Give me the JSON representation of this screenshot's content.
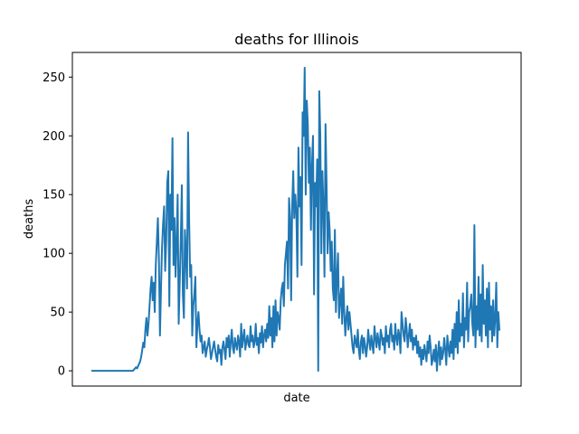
{
  "chart_data": {
    "type": "line",
    "title": "deaths for Illinois",
    "xlabel": "date",
    "ylabel": "deaths",
    "ylim": [
      -13,
      271
    ],
    "yticks": [
      0,
      50,
      100,
      150,
      200,
      250
    ],
    "x_ticks_visible": false,
    "grid": false,
    "legend": "none",
    "series": [
      {
        "color": "#1f77b4",
        "values": [
          0,
          0,
          0,
          0,
          0,
          0,
          0,
          0,
          0,
          0,
          0,
          0,
          0,
          0,
          0,
          0,
          0,
          0,
          0,
          0,
          0,
          0,
          0,
          0,
          0,
          0,
          0,
          0,
          0,
          0,
          0,
          0,
          0,
          0,
          0,
          0,
          0,
          0,
          0,
          0,
          1,
          2,
          3,
          2,
          4,
          6,
          8,
          12,
          18,
          24,
          20,
          35,
          45,
          30,
          40,
          55,
          70,
          80,
          60,
          75,
          50,
          90,
          110,
          130,
          95,
          30,
          70,
          105,
          125,
          140,
          85,
          110,
          160,
          170,
          55,
          150,
          120,
          198,
          90,
          130,
          80,
          110,
          150,
          40,
          75,
          110,
          158,
          65,
          45,
          120,
          100,
          70,
          203,
          130,
          80,
          90,
          30,
          55,
          65,
          80,
          20,
          40,
          50,
          35,
          25,
          30,
          15,
          20,
          25,
          12,
          18,
          22,
          28,
          20,
          10,
          15,
          20,
          25,
          18,
          12,
          8,
          22,
          15,
          18,
          5,
          20,
          25,
          18,
          10,
          28,
          20,
          30,
          12,
          25,
          35,
          20,
          15,
          28,
          22,
          18,
          30,
          25,
          12,
          40,
          20,
          28,
          35,
          18,
          25,
          30,
          22,
          20,
          38,
          25,
          30,
          20,
          25,
          40,
          22,
          28,
          15,
          32,
          24,
          38,
          20,
          30,
          35,
          25,
          40,
          28,
          55,
          30,
          45,
          20,
          55,
          25,
          60,
          30,
          50,
          45,
          35,
          60,
          70,
          75,
          55,
          90,
          100,
          110,
          70,
          147,
          130,
          60,
          140,
          170,
          130,
          150,
          135,
          80,
          190,
          140,
          165,
          90,
          220,
          200,
          258,
          150,
          230,
          210,
          160,
          190,
          120,
          175,
          200,
          65,
          160,
          140,
          180,
          0,
          238,
          200,
          100,
          170,
          140,
          80,
          210,
          160,
          100,
          135,
          120,
          85,
          110,
          70,
          60,
          120,
          50,
          80,
          100,
          45,
          60,
          70,
          40,
          80,
          50,
          30,
          45,
          55,
          35,
          50,
          40,
          30,
          20,
          15,
          30,
          25,
          20,
          35,
          18,
          10,
          25,
          30,
          15,
          28,
          22,
          12,
          20,
          35,
          25,
          18,
          30,
          22,
          15,
          38,
          28,
          20,
          32,
          25,
          18,
          35,
          30,
          22,
          28,
          15,
          38,
          25,
          30,
          20,
          35,
          40,
          25,
          30,
          18,
          40,
          28,
          22,
          35,
          30,
          15,
          50,
          40,
          30,
          25,
          45,
          35,
          20,
          30,
          40,
          25,
          35,
          18,
          28,
          22,
          30,
          15,
          25,
          12,
          20,
          5,
          18,
          10,
          22,
          15,
          8,
          25,
          15,
          30,
          20,
          5,
          10,
          18,
          8,
          22,
          0,
          15,
          25,
          5,
          20,
          10,
          15,
          28,
          18,
          5,
          30,
          20,
          12,
          25,
          15,
          35,
          10,
          40,
          20,
          50,
          15,
          60,
          25,
          40,
          30,
          66,
          20,
          45,
          35,
          75,
          25,
          50,
          55,
          65,
          40,
          30,
          124,
          20,
          55,
          35,
          80,
          30,
          65,
          25,
          90,
          40,
          60,
          30,
          70,
          20,
          75,
          35,
          55,
          25,
          60,
          30,
          45,
          75,
          20,
          50,
          35
        ]
      }
    ]
  }
}
